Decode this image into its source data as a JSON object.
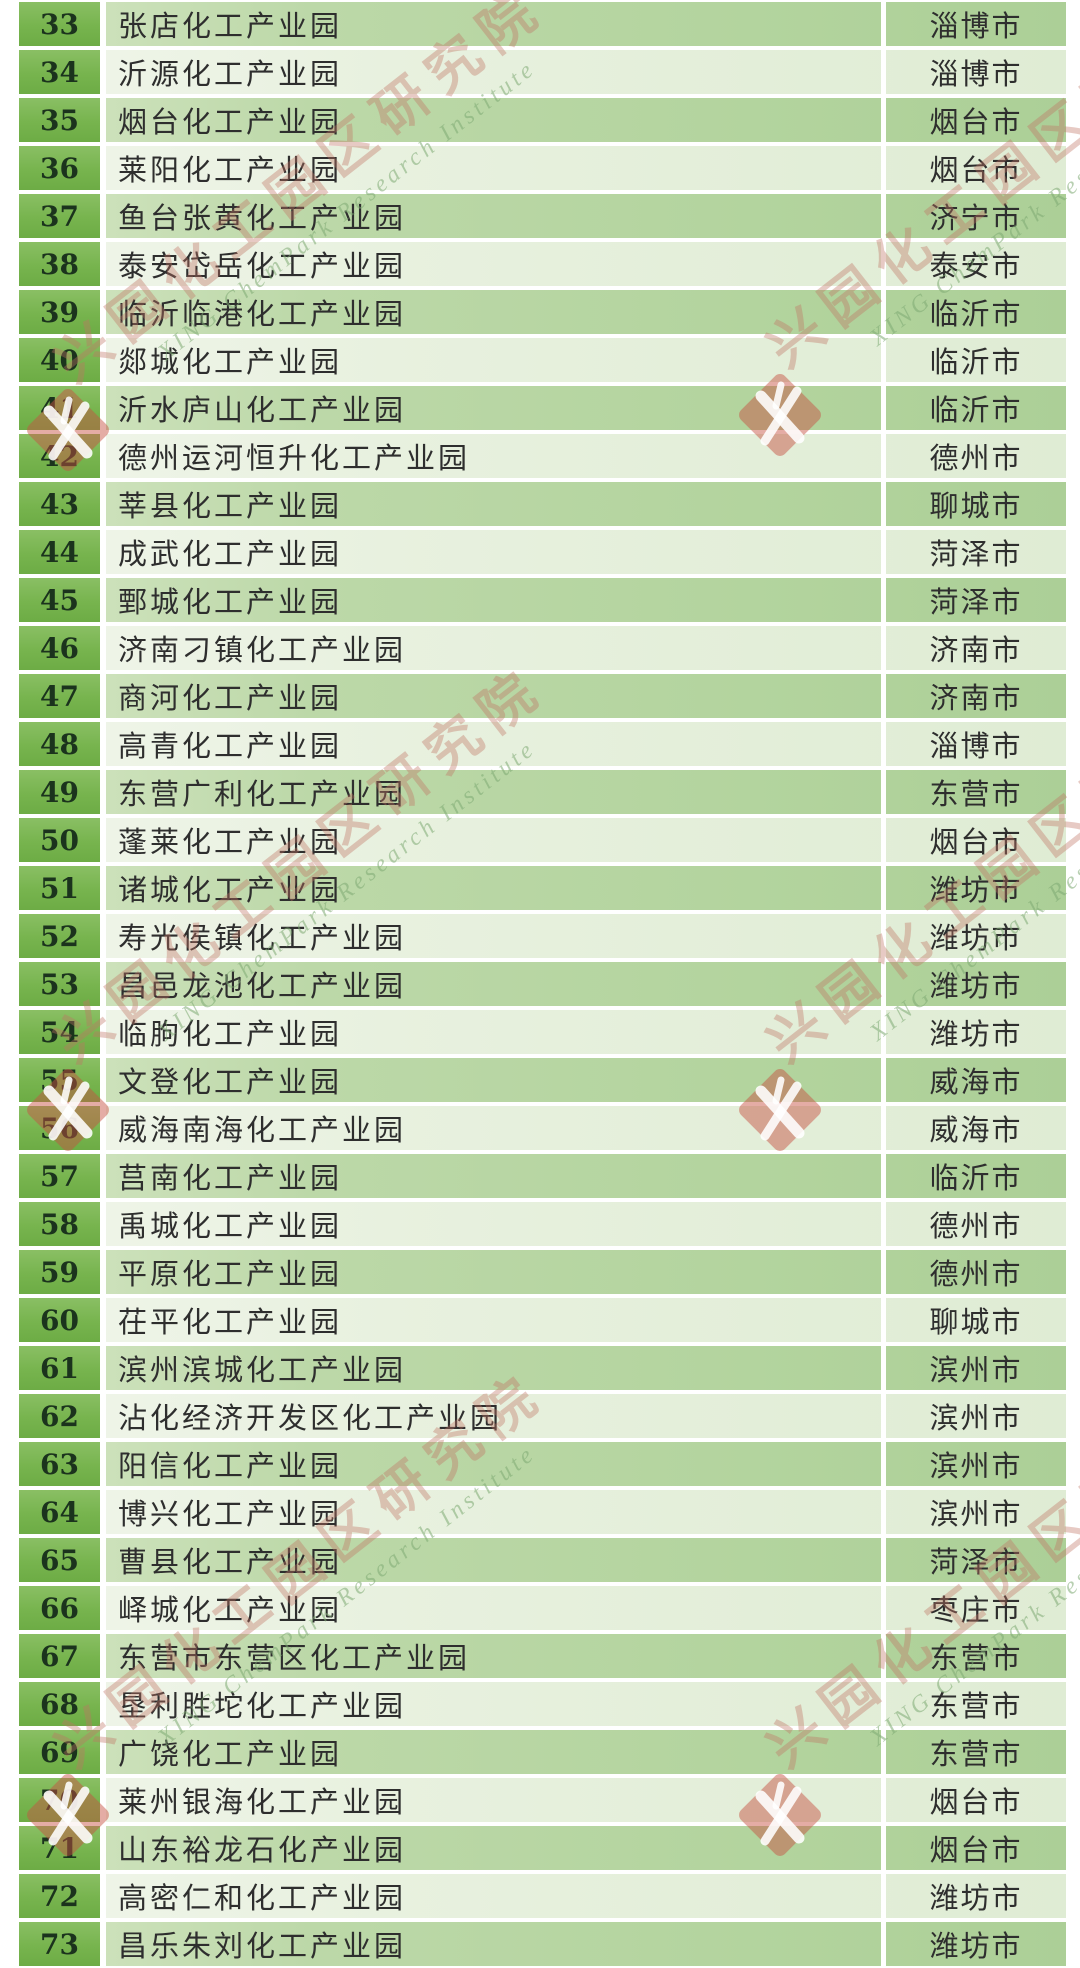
{
  "table": {
    "rows": [
      {
        "num": "33",
        "name": "张店化工产业园",
        "city": "淄博市"
      },
      {
        "num": "34",
        "name": "沂源化工产业园",
        "city": "淄博市"
      },
      {
        "num": "35",
        "name": "烟台化工产业园",
        "city": "烟台市"
      },
      {
        "num": "36",
        "name": "莱阳化工产业园",
        "city": "烟台市"
      },
      {
        "num": "37",
        "name": "鱼台张黄化工产业园",
        "city": "济宁市"
      },
      {
        "num": "38",
        "name": "泰安岱岳化工产业园",
        "city": "泰安市"
      },
      {
        "num": "39",
        "name": "临沂临港化工产业园",
        "city": "临沂市"
      },
      {
        "num": "40",
        "name": "郯城化工产业园",
        "city": "临沂市"
      },
      {
        "num": "41",
        "name": "沂水庐山化工产业园",
        "city": "临沂市"
      },
      {
        "num": "42",
        "name": "德州运河恒升化工产业园",
        "city": "德州市"
      },
      {
        "num": "43",
        "name": "莘县化工产业园",
        "city": "聊城市"
      },
      {
        "num": "44",
        "name": "成武化工产业园",
        "city": "菏泽市"
      },
      {
        "num": "45",
        "name": "鄄城化工产业园",
        "city": "菏泽市"
      },
      {
        "num": "46",
        "name": "济南刁镇化工产业园",
        "city": "济南市"
      },
      {
        "num": "47",
        "name": "商河化工产业园",
        "city": "济南市"
      },
      {
        "num": "48",
        "name": "高青化工产业园",
        "city": "淄博市"
      },
      {
        "num": "49",
        "name": "东营广利化工产业园",
        "city": "东营市"
      },
      {
        "num": "50",
        "name": "蓬莱化工产业园",
        "city": "烟台市"
      },
      {
        "num": "51",
        "name": "诸城化工产业园",
        "city": "潍坊市"
      },
      {
        "num": "52",
        "name": "寿光侯镇化工产业园",
        "city": "潍坊市"
      },
      {
        "num": "53",
        "name": "昌邑龙池化工产业园",
        "city": "潍坊市"
      },
      {
        "num": "54",
        "name": "临朐化工产业园",
        "city": "潍坊市"
      },
      {
        "num": "55",
        "name": "文登化工产业园",
        "city": "威海市"
      },
      {
        "num": "56",
        "name": "威海南海化工产业园",
        "city": "威海市"
      },
      {
        "num": "57",
        "name": "莒南化工产业园",
        "city": "临沂市"
      },
      {
        "num": "58",
        "name": "禹城化工产业园",
        "city": "德州市"
      },
      {
        "num": "59",
        "name": "平原化工产业园",
        "city": "德州市"
      },
      {
        "num": "60",
        "name": "茌平化工产业园",
        "city": "聊城市"
      },
      {
        "num": "61",
        "name": "滨州滨城化工产业园",
        "city": "滨州市"
      },
      {
        "num": "62",
        "name": "沾化经济开发区化工产业园",
        "city": "滨州市"
      },
      {
        "num": "63",
        "name": "阳信化工产业园",
        "city": "滨州市"
      },
      {
        "num": "64",
        "name": "博兴化工产业园",
        "city": "滨州市"
      },
      {
        "num": "65",
        "name": "曹县化工产业园",
        "city": "菏泽市"
      },
      {
        "num": "66",
        "name": "峄城化工产业园",
        "city": "枣庄市"
      },
      {
        "num": "67",
        "name": "东营市东营区化工产业园",
        "city": "东营市"
      },
      {
        "num": "68",
        "name": "垦利胜坨化工产业园",
        "city": "东营市"
      },
      {
        "num": "69",
        "name": "广饶化工产业园",
        "city": "东营市"
      },
      {
        "num": "70",
        "name": "莱州银海化工产业园",
        "city": "烟台市"
      },
      {
        "num": "71",
        "name": "山东裕龙石化产业园",
        "city": "烟台市"
      },
      {
        "num": "72",
        "name": "高密仁和化工产业园",
        "city": "潍坊市"
      },
      {
        "num": "73",
        "name": "昌乐朱刘化工产业园",
        "city": "潍坊市"
      }
    ]
  },
  "watermark": {
    "logo_icon": "xing-chempark-diamond-logo",
    "text_cn": "兴园化工园区研究院",
    "text_en": "XING ChemPark Research Institute"
  },
  "colors": {
    "row_dark": "#b7d6a3",
    "row_light": "#e7f0de",
    "rank_cell_green": "#77b44e",
    "separator": "#ffffff",
    "text": "#2e2e2e",
    "watermark_red": "#c4554a",
    "watermark_green": "#7eaa73"
  }
}
